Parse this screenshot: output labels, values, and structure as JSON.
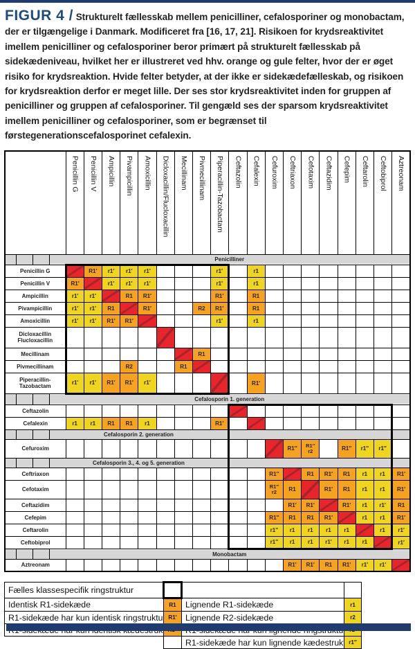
{
  "figure": {
    "label": "FIGUR 4 /",
    "caption": "Strukturelt fællesskab mellem penicilliner, cefalosporiner og monobactam, der er tilgængelige i Danmark. Modificeret fra [16, 17, 21]. Risikoen for krydsreaktivitet imellem penicilliner og cefalosporiner beror primært på strukturelt fællesskab på sidekædeniveau, hvilket her er illustreret ved hhv. orange og gule felter, hvor der er øget risiko for krydsreaktion. Hvide felter betyder, at der ikke er sidekædefælleskab, og risikoen for krydsreaktion derfor er meget lille. Der ses stor krydsreaktivitet inden for gruppen af penicilliner og gruppen af cefalosporiner. Til gengæld ses der sparsom krydsreaktivitet imellem penicilliner og cefalosporiner, som er begrænset til førstegenerationscefalosporinet cefalexin."
  },
  "colors": {
    "orange": "#F5A21E",
    "yellow": "#F0D51F",
    "red": "#E8252B",
    "diag_line": "#A6242A",
    "band_gray": "#D6D6D6",
    "navy": "#1E3D6E",
    "figure_blue": "#1C4B82"
  },
  "chart_data": {
    "type": "heatmap",
    "title": "Strukturelt fællesskab mellem penicilliner, cefalosporiner og monobactam",
    "legend_codes_meaning": {
      "R1": "Identisk R1-sidekæde",
      "R1′": "R1-sidekæde har kun identisk ringstruktur",
      "R1″": "R1-sidekæde har kun identisk kædestruktur",
      "r1": "Lignende R1-sidekæde",
      "r2": "Lignende R2-sidekæde",
      "r1′": "R1-sidekæde har kun lignende ringstruktur",
      "r1″": "R1-sidekæde har kun lignende kædestruktur",
      "box": "Fælles klassespecifik ringstruktur"
    },
    "columns": [
      "Penicillin G",
      "Penicillin V",
      "Ampicillin",
      "Pivampicillin",
      "Amoxicillin",
      "Dicloxacillin/Flucloxacillin",
      "Mecillinam",
      "Pivmecillinam",
      "Piperacillin-Tazobactam",
      "Ceftazolin",
      "Cefalexin",
      "Cefuroxim",
      "Ceftriaxon",
      "Cefotaxim",
      "Ceftazidim",
      "Cefepim",
      "Ceftarolin",
      "Ceftobiprol",
      "Aztreonam"
    ],
    "sections": [
      {
        "band": "Penicilliner",
        "crosses_box": false,
        "rows": [
          {
            "label": "Penicillin G",
            "cells": [
              "D",
              "O|R1′",
              "Y|r1′",
              "Y|r1′",
              "Y|r1′",
              "",
              "",
              "",
              "Y|r1′",
              "",
              "Y|r1",
              "",
              "",
              "",
              "",
              "",
              "",
              "",
              ""
            ]
          },
          {
            "label": "Penicillin V",
            "cells": [
              "O|R1′",
              "D",
              "Y|r1′",
              "Y|r1′",
              "Y|r1′",
              "",
              "",
              "",
              "Y|r1′",
              "",
              "Y|r1",
              "",
              "",
              "",
              "",
              "",
              "",
              "",
              ""
            ]
          },
          {
            "label": "Ampicillin",
            "cells": [
              "Y|r1′",
              "Y|r1′",
              "D",
              "O|R1",
              "O|R1′",
              "",
              "",
              "",
              "O|R1′",
              "",
              "O|R1",
              "",
              "",
              "",
              "",
              "",
              "",
              "",
              ""
            ]
          },
          {
            "label": "Pivampicillin",
            "cells": [
              "Y|r1′",
              "Y|r1′",
              "O|R1",
              "D",
              "O|R1′",
              "",
              "",
              "O|R2",
              "O|R1′",
              "",
              "O|R1",
              "",
              "",
              "",
              "",
              "",
              "",
              "",
              ""
            ]
          },
          {
            "label": "Amoxicillin",
            "cells": [
              "Y|r1′",
              "Y|r1′",
              "O|R1′",
              "O|R1′",
              "D",
              "",
              "",
              "",
              "Y|r1′",
              "",
              "Y|r1",
              "",
              "",
              "",
              "",
              "",
              "",
              "",
              ""
            ]
          },
          {
            "label": "Dicloxacillin\nFlucloxacillin",
            "cells": [
              "",
              "",
              "",
              "",
              "",
              "D",
              "",
              "",
              "",
              "",
              "",
              "",
              "",
              "",
              "",
              "",
              "",
              "",
              ""
            ]
          },
          {
            "label": "Mecillinam",
            "cells": [
              "",
              "",
              "",
              "",
              "",
              "",
              "D",
              "O|R1",
              "",
              "",
              "",
              "",
              "",
              "",
              "",
              "",
              "",
              "",
              ""
            ]
          },
          {
            "label": "Pivmecillinam",
            "cells": [
              "",
              "",
              "",
              "O|R2",
              "",
              "",
              "O|R1",
              "D",
              "",
              "",
              "",
              "",
              "",
              "",
              "",
              "",
              "",
              "",
              ""
            ]
          },
          {
            "label": "Piperacillin-\nTazobactam",
            "cells": [
              "Y|r1′",
              "Y|r1′",
              "O|R1′",
              "O|R1′",
              "Y|r1′",
              "",
              "",
              "",
              "D",
              "",
              "O|R1′",
              "",
              "",
              "",
              "",
              "",
              "",
              "",
              ""
            ]
          }
        ]
      },
      {
        "band": "Cefalosporin 1. generation",
        "crosses_box": false,
        "rows": [
          {
            "label": "Ceftazolin",
            "cells": [
              "",
              "",
              "",
              "",
              "",
              "",
              "",
              "",
              "",
              "D",
              "",
              "",
              "",
              "",
              "",
              "",
              "",
              "",
              ""
            ]
          },
          {
            "label": "Cefalexin",
            "cells": [
              "Y|r1",
              "Y|r1",
              "O|R1",
              "O|R1",
              "Y|r1",
              "",
              "",
              "",
              "O|R1′",
              "",
              "D",
              "",
              "",
              "",
              "",
              "",
              "",
              "",
              ""
            ]
          }
        ]
      },
      {
        "band": "Cefalosporin 2. generation",
        "crosses_box": true,
        "rows": [
          {
            "label": "Cefuroxim",
            "cells": [
              "",
              "",
              "",
              "",
              "",
              "",
              "",
              "",
              "",
              "",
              "",
              "D",
              "O|R1″",
              "O2|R1″|r2",
              "",
              "O|R1″",
              "Y|r1″",
              "Y|r1″",
              ""
            ]
          }
        ]
      },
      {
        "band": "Cefalosporin 3., 4. og 5. generation",
        "crosses_box": true,
        "rows": [
          {
            "label": "Ceftriaxon",
            "cells": [
              "",
              "",
              "",
              "",
              "",
              "",
              "",
              "",
              "",
              "",
              "",
              "O|R1″",
              "D",
              "O|R1",
              "O|R1′",
              "O|R1",
              "Y|r1",
              "Y|r1",
              "O|R1′"
            ]
          },
          {
            "label": "Cefotaxim",
            "cells": [
              "",
              "",
              "",
              "",
              "",
              "",
              "",
              "",
              "",
              "",
              "",
              "O2|R1″|r2",
              "O|R1",
              "D",
              "O|R1′",
              "O|R1",
              "Y|r1",
              "Y|r1",
              "O|R1′"
            ]
          },
          {
            "label": "Ceftazidim",
            "cells": [
              "",
              "",
              "",
              "",
              "",
              "",
              "",
              "",
              "",
              "",
              "",
              "",
              "O|R1′",
              "O|R1′",
              "D",
              "O|R1′",
              "Y|r1",
              "Y|r1′",
              "O|R1"
            ]
          },
          {
            "label": "Cefepim",
            "cells": [
              "",
              "",
              "",
              "",
              "",
              "",
              "",
              "",
              "",
              "",
              "",
              "O|R1″",
              "O|R1",
              "O|R1",
              "O|R1′",
              "D",
              "Y|r1",
              "Y|r1",
              "O|R1′"
            ]
          },
          {
            "label": "Ceftarolin",
            "cells": [
              "",
              "",
              "",
              "",
              "",
              "",
              "",
              "",
              "",
              "",
              "",
              "Y|r1″",
              "Y|r1",
              "Y|r1",
              "Y|r1",
              "Y|r1",
              "D",
              "Y|r1",
              "Y|r1′"
            ]
          },
          {
            "label": "Ceftobiprol",
            "cells": [
              "",
              "",
              "",
              "",
              "",
              "",
              "",
              "",
              "",
              "",
              "",
              "Y|r1″",
              "Y|r1",
              "Y|r1",
              "Y|r1′",
              "Y|r1",
              "Y|r1",
              "D",
              "Y|r1′"
            ]
          }
        ]
      },
      {
        "band": "Monobactam",
        "crosses_box": false,
        "rows": [
          {
            "label": "Aztreonam",
            "cells": [
              "",
              "",
              "",
              "",
              "",
              "",
              "",
              "",
              "",
              "",
              "",
              "",
              "O|R1′",
              "O|R1′",
              "O|R1",
              "O|R1′",
              "Y|r1′",
              "Y|r1′",
              "D"
            ]
          }
        ]
      }
    ],
    "boxes": [
      {
        "r1": 0,
        "r2": 8,
        "c1": 0,
        "c2": 8
      },
      {
        "r1": 9,
        "r2": 17,
        "c1": 9,
        "c2": 17
      }
    ]
  },
  "legend": {
    "title": "Fælles klassespecifik ringstruktur",
    "rows": [
      {
        "left": "Identisk R1-sidekæde",
        "left_code": "R1",
        "right": "Lignende R1-sidekæde",
        "right_code": "r1"
      },
      {
        "left": "R1-sidekæde har kun identisk ringstruktur",
        "left_code": "R1′",
        "right": "Lignende R2-sidekæde",
        "right_code": "r2"
      },
      {
        "left": "R1-sidekæde har kun identisk kædestruktur",
        "left_code": "R1″",
        "right": "R1-sidekæde har kun lignende ringstruktur",
        "right_code": "r1′"
      },
      {
        "left": "",
        "left_code": "",
        "right": "R1-sidekæde har kun lignende kædestruktur",
        "right_code": "r1″"
      }
    ]
  }
}
